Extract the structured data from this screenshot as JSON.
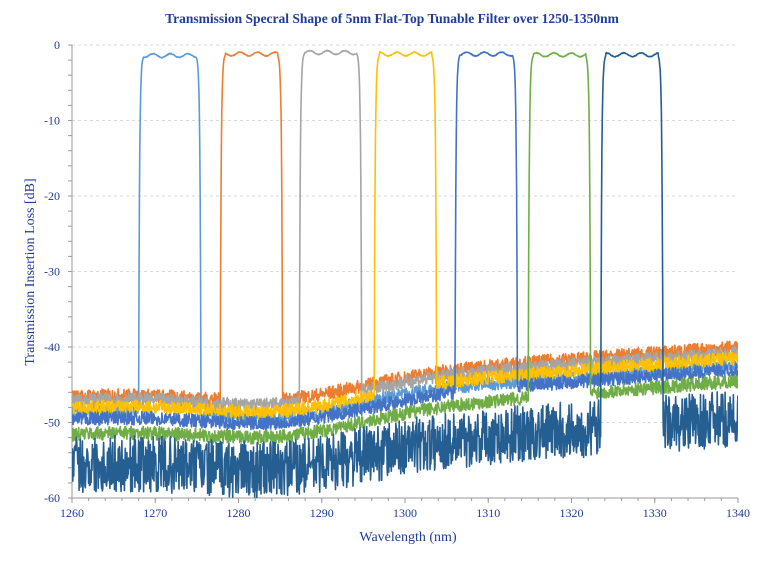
{
  "chart_data": {
    "type": "line",
    "title": "Transmission Specral Shape of 5nm Flat-Top Tunable Filter over 1250-1350nm",
    "xlabel": "Wavelength (nm)",
    "ylabel": "Transmission Insertion Loss [dB]",
    "xlim": [
      1260,
      1340
    ],
    "ylim": [
      -60,
      0
    ],
    "xticks": [
      1260,
      1270,
      1280,
      1290,
      1300,
      1310,
      1320,
      1330,
      1340
    ],
    "yticks": [
      0,
      -10,
      -20,
      -30,
      -40,
      -50,
      -60
    ],
    "x_tick_labels": [
      "1260",
      "1270",
      "1280",
      "1290",
      "1300",
      "1310",
      "1320",
      "1330",
      "1340"
    ],
    "y_tick_labels": [
      "0",
      "-10",
      "-20",
      "-30",
      "-40",
      "-50",
      "-60"
    ],
    "grid": true,
    "legend": "none",
    "series": [
      {
        "color": "#5b9bd5",
        "passband": [
          1268.0,
          1275.5
        ],
        "peak_db": -1.4,
        "floor_start_db": -48.5,
        "floor_end_db": -42.5
      },
      {
        "color": "#ed7d31",
        "passband": [
          1277.8,
          1285.3
        ],
        "peak_db": -1.2,
        "floor_start_db": -46.5,
        "floor_end_db": -40.0
      },
      {
        "color": "#a5a5a5",
        "passband": [
          1287.3,
          1294.8
        ],
        "peak_db": -1.0,
        "floor_start_db": -47.0,
        "floor_end_db": -40.8
      },
      {
        "color": "#ffc000",
        "passband": [
          1296.3,
          1303.8
        ],
        "peak_db": -1.2,
        "floor_start_db": -48.0,
        "floor_end_db": -41.5
      },
      {
        "color": "#4472c4",
        "passband": [
          1306.0,
          1313.5
        ],
        "peak_db": -1.2,
        "floor_start_db": -49.5,
        "floor_end_db": -43.0
      },
      {
        "color": "#70ad47",
        "passband": [
          1314.8,
          1322.3
        ],
        "peak_db": -1.3,
        "floor_start_db": -51.5,
        "floor_end_db": -44.5
      },
      {
        "color": "#255e91",
        "passband": [
          1323.5,
          1331.0
        ],
        "peak_db": -1.3,
        "floor_start_db": -55.5,
        "floor_end_db": -49.5
      }
    ]
  }
}
